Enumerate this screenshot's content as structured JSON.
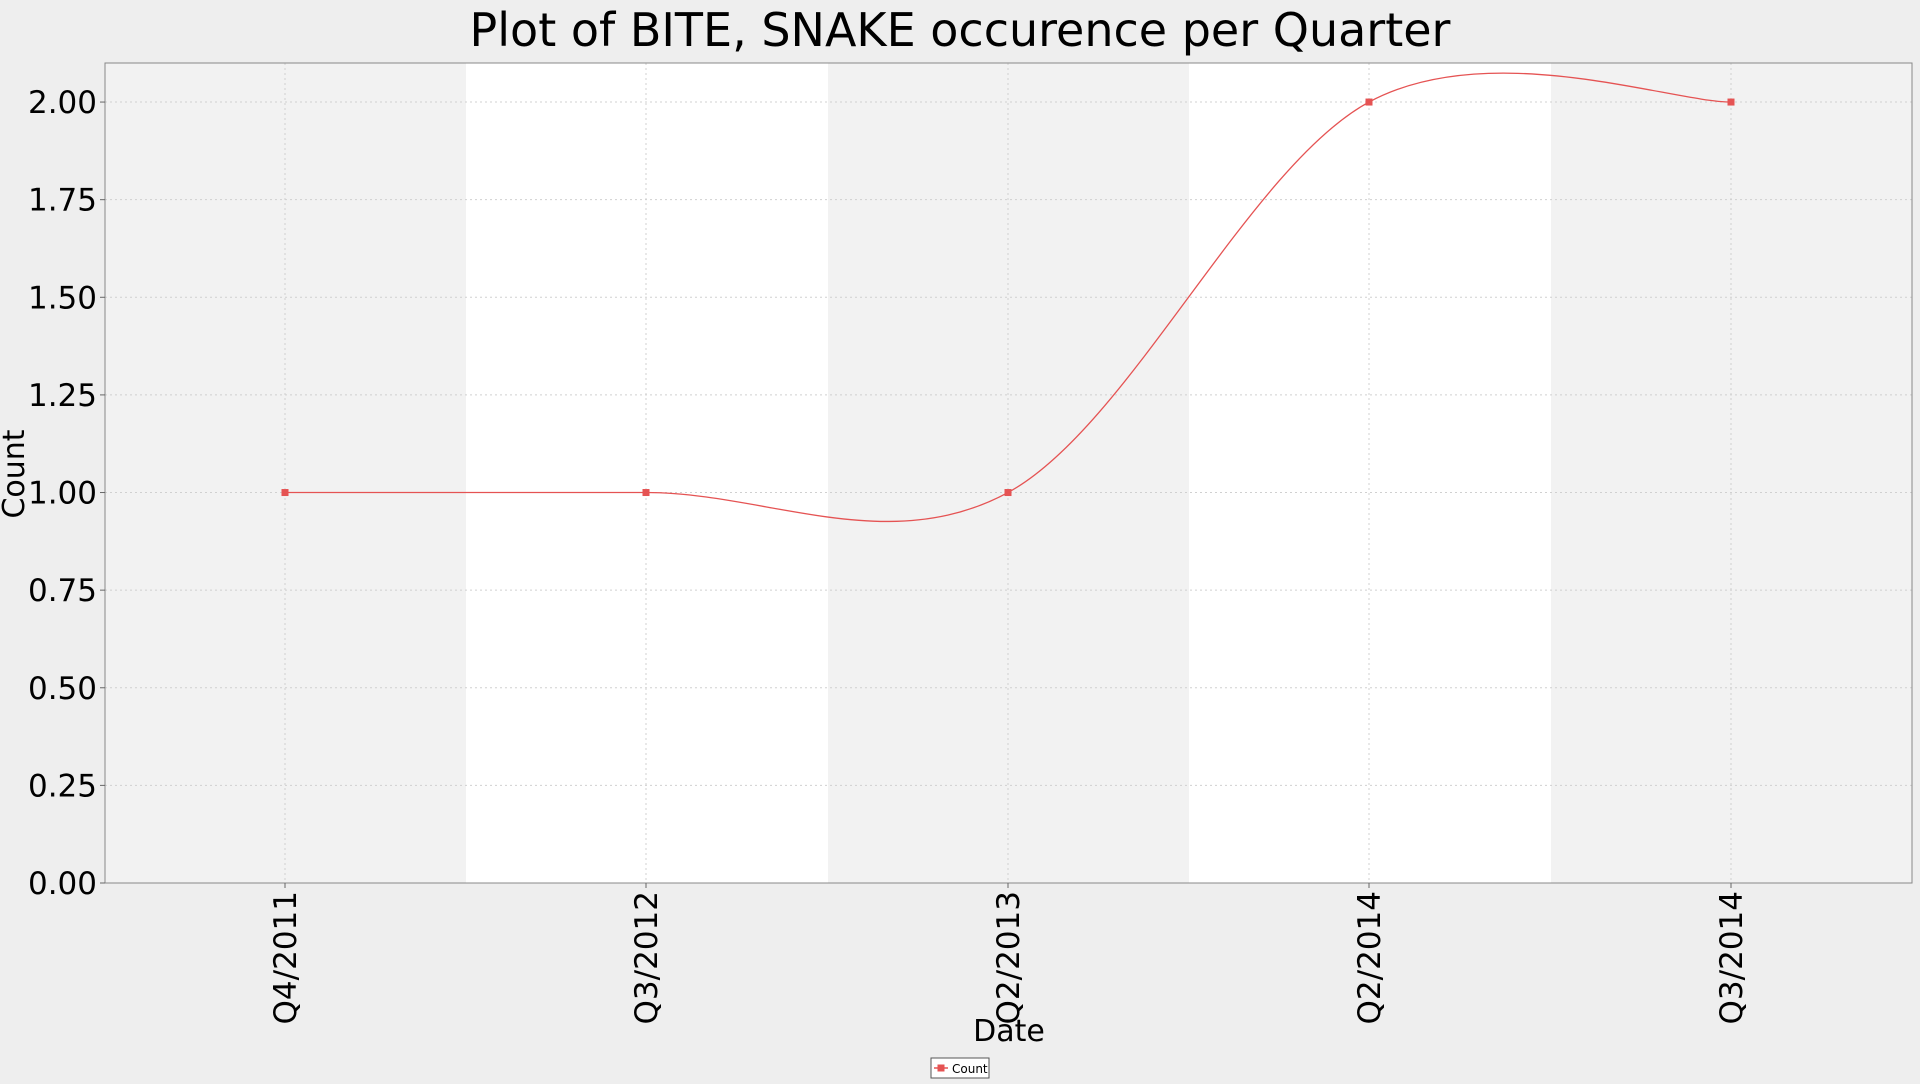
{
  "chart_data": {
    "type": "line",
    "title": "Plot of BITE, SNAKE occurence per Quarter",
    "xlabel": "Date",
    "ylabel": "Count",
    "ylim": [
      0,
      2.1
    ],
    "yticks": [
      "0.00",
      "0.25",
      "0.50",
      "0.75",
      "1.00",
      "1.25",
      "1.50",
      "1.75",
      "2.00"
    ],
    "categories": [
      "Q4/2011",
      "Q3/2012",
      "Q2/2013",
      "Q2/2014",
      "Q3/2014"
    ],
    "series": [
      {
        "name": "Count",
        "color": "#e55353",
        "values": [
          1,
          1,
          1,
          2,
          2
        ]
      }
    ],
    "smoothed": true,
    "grid": true,
    "legend": {
      "position": "bottom-center",
      "entries": [
        "Count"
      ]
    },
    "band_colors": [
      "#f2f2f2",
      "#ffffff"
    ]
  }
}
